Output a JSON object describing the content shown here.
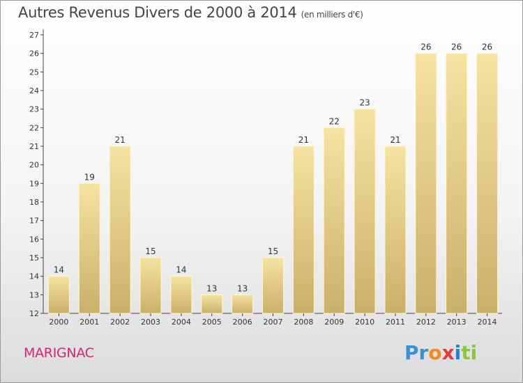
{
  "header": {
    "title": "Autres Revenus Divers de 2000 à 2014",
    "subtitle": "(en milliers d'€)"
  },
  "footer": {
    "town": "MARIGNAC",
    "logo_letters": [
      "Pr",
      "o",
      "x",
      "i",
      "ti"
    ]
  },
  "colors": {
    "bar_top": "#f6e3a2",
    "bar_bottom": "#c9b06a",
    "bar_border": "#fff6c8",
    "axis": "#444444",
    "grid": "#e0e0e0"
  },
  "chart_data": {
    "type": "bar",
    "title": "Autres Revenus Divers de 2000 à 2014",
    "subtitle": "(en milliers d'€)",
    "xlabel": "",
    "ylabel": "",
    "categories": [
      "2000",
      "2001",
      "2002",
      "2003",
      "2004",
      "2005",
      "2006",
      "2007",
      "2008",
      "2009",
      "2010",
      "2011",
      "2012",
      "2013",
      "2014"
    ],
    "values": [
      14,
      19,
      21,
      15,
      14,
      13,
      13,
      15,
      21,
      22,
      23,
      21,
      26,
      26,
      26
    ],
    "ylim": [
      12,
      27
    ],
    "yticks": [
      12,
      13,
      14,
      15,
      16,
      17,
      18,
      19,
      20,
      21,
      22,
      23,
      24,
      25,
      26,
      27
    ],
    "grid": false,
    "data_labels": true
  }
}
